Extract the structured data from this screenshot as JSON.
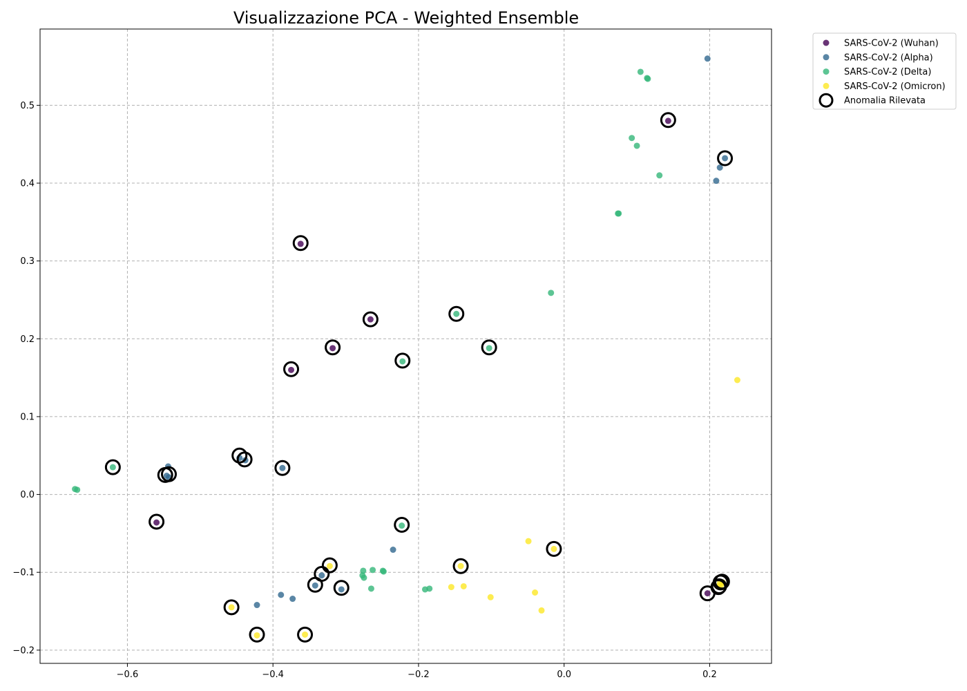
{
  "chart_data": {
    "type": "scatter",
    "title": "Visualizzazione PCA - Weighted Ensemble",
    "xlabel": "",
    "ylabel": "",
    "xlim": [
      -0.72,
      0.285
    ],
    "ylim": [
      -0.217,
      0.598
    ],
    "grid": true,
    "legend_position": "outside-top-right",
    "x_ticks": [
      -0.6,
      -0.4,
      -0.2,
      0.0,
      0.2
    ],
    "x_tick_labels": [
      "−0.6",
      "−0.4",
      "−0.2",
      "0.0",
      "0.2"
    ],
    "y_ticks": [
      -0.2,
      -0.1,
      0.0,
      0.1,
      0.2,
      0.3,
      0.4,
      0.5
    ],
    "y_tick_labels": [
      "−0.2",
      "−0.1",
      "0.0",
      "0.1",
      "0.2",
      "0.3",
      "0.4",
      "0.5"
    ],
    "series": [
      {
        "name": "SARS-CoV-2 (Wuhan)",
        "color": "#440154",
        "points": [
          [
            0.143,
            0.48
          ],
          [
            -0.362,
            0.322
          ],
          [
            -0.266,
            0.225
          ],
          [
            -0.318,
            0.188
          ],
          [
            -0.375,
            0.16
          ],
          [
            -0.56,
            -0.036
          ],
          [
            0.197,
            -0.127
          ]
        ]
      },
      {
        "name": "SARS-CoV-2 (Alpha)",
        "color": "#31688e",
        "points": [
          [
            0.197,
            0.56
          ],
          [
            0.221,
            0.432
          ],
          [
            0.214,
            0.42
          ],
          [
            0.209,
            0.403
          ],
          [
            -0.544,
            0.036
          ],
          [
            -0.546,
            0.024
          ],
          [
            -0.543,
            0.022
          ],
          [
            -0.446,
            0.047
          ],
          [
            -0.438,
            0.044
          ],
          [
            -0.387,
            0.034
          ],
          [
            -0.235,
            -0.071
          ],
          [
            -0.333,
            -0.104
          ],
          [
            -0.342,
            -0.117
          ],
          [
            -0.306,
            -0.122
          ],
          [
            -0.389,
            -0.129
          ],
          [
            -0.373,
            -0.134
          ],
          [
            -0.422,
            -0.142
          ]
        ]
      },
      {
        "name": "SARS-CoV-2 (Delta)",
        "color": "#35b779",
        "points": [
          [
            0.105,
            0.543
          ],
          [
            0.114,
            0.535
          ],
          [
            0.115,
            0.534
          ],
          [
            0.093,
            0.458
          ],
          [
            0.1,
            0.448
          ],
          [
            0.131,
            0.41
          ],
          [
            0.074,
            0.361
          ],
          [
            0.075,
            0.361
          ],
          [
            -0.018,
            0.259
          ],
          [
            -0.148,
            0.232
          ],
          [
            -0.103,
            0.188
          ],
          [
            -0.222,
            0.171
          ],
          [
            -0.62,
            0.035
          ],
          [
            -0.672,
            0.007
          ],
          [
            -0.669,
            0.006
          ],
          [
            -0.223,
            -0.04
          ],
          [
            -0.276,
            -0.098
          ],
          [
            -0.263,
            -0.097
          ],
          [
            -0.249,
            -0.098
          ],
          [
            -0.248,
            -0.099
          ],
          [
            -0.277,
            -0.104
          ],
          [
            -0.275,
            -0.107
          ],
          [
            -0.265,
            -0.121
          ],
          [
            -0.191,
            -0.122
          ],
          [
            -0.185,
            -0.121
          ]
        ]
      },
      {
        "name": "SARS-CoV-2 (Omicron)",
        "color": "#fde725",
        "points": [
          [
            0.238,
            0.147
          ],
          [
            -0.049,
            -0.06
          ],
          [
            -0.014,
            -0.07
          ],
          [
            -0.322,
            -0.092
          ],
          [
            -0.142,
            -0.092
          ],
          [
            -0.155,
            -0.119
          ],
          [
            -0.138,
            -0.118
          ],
          [
            -0.101,
            -0.132
          ],
          [
            -0.04,
            -0.126
          ],
          [
            -0.031,
            -0.149
          ],
          [
            -0.457,
            -0.145
          ],
          [
            -0.422,
            -0.181
          ],
          [
            -0.356,
            -0.18
          ],
          [
            0.214,
            -0.114
          ],
          [
            0.216,
            -0.116
          ],
          [
            0.218,
            -0.113
          ],
          [
            0.213,
            -0.118
          ]
        ]
      }
    ],
    "anomalies": {
      "name": "Anomalia Rilevata",
      "points": [
        [
          0.143,
          0.481
        ],
        [
          0.221,
          0.432
        ],
        [
          -0.362,
          0.323
        ],
        [
          -0.266,
          0.225
        ],
        [
          -0.148,
          0.232
        ],
        [
          -0.318,
          0.189
        ],
        [
          -0.103,
          0.189
        ],
        [
          -0.222,
          0.172
        ],
        [
          -0.375,
          0.161
        ],
        [
          -0.62,
          0.035
        ],
        [
          -0.548,
          0.025
        ],
        [
          -0.543,
          0.026
        ],
        [
          -0.446,
          0.05
        ],
        [
          -0.439,
          0.045
        ],
        [
          -0.387,
          0.034
        ],
        [
          -0.56,
          -0.035
        ],
        [
          -0.223,
          -0.039
        ],
        [
          -0.014,
          -0.07
        ],
        [
          -0.322,
          -0.091
        ],
        [
          -0.142,
          -0.092
        ],
        [
          -0.333,
          -0.102
        ],
        [
          -0.342,
          -0.116
        ],
        [
          -0.306,
          -0.12
        ],
        [
          -0.457,
          -0.145
        ],
        [
          -0.422,
          -0.18
        ],
        [
          -0.356,
          -0.18
        ],
        [
          0.197,
          -0.127
        ],
        [
          0.215,
          -0.113
        ],
        [
          0.217,
          -0.112
        ],
        [
          0.213,
          -0.118
        ],
        [
          0.212,
          -0.119
        ]
      ]
    }
  }
}
